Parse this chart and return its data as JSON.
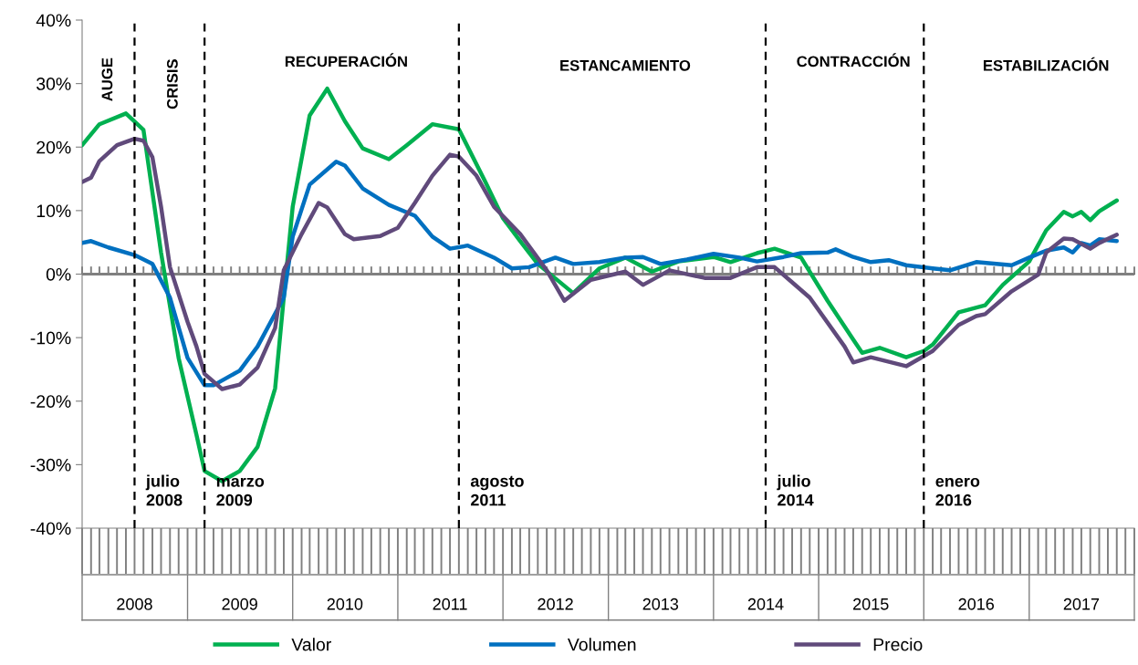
{
  "chart_data": {
    "type": "line",
    "series": [
      {
        "name": "Valor",
        "color": "#00b050",
        "x": [
          "2008-01",
          "2008-03",
          "2008-06",
          "2008-08",
          "2008-10",
          "2008-12",
          "2009-02",
          "2009-03",
          "2009-05",
          "2009-07",
          "2009-09",
          "2009-11",
          "2009-12",
          "2010-01",
          "2010-03",
          "2010-05",
          "2010-07",
          "2010-09",
          "2010-12",
          "2011-02",
          "2011-05",
          "2011-08",
          "2011-11",
          "2012-01",
          "2012-03",
          "2012-05",
          "2012-09",
          "2012-12",
          "2013-03",
          "2013-06",
          "2013-09",
          "2014-01",
          "2014-03",
          "2014-06",
          "2014-08",
          "2014-11",
          "2015-02",
          "2015-05",
          "2015-06",
          "2015-08",
          "2015-11",
          "2016-01",
          "2016-02",
          "2016-05",
          "2016-08",
          "2016-10",
          "2017-01",
          "2017-03",
          "2017-05",
          "2017-06",
          "2017-07",
          "2017-08",
          "2017-09",
          "2017-11"
        ],
        "values": [
          20.3,
          23.6,
          25.3,
          22.7,
          3.4,
          -13.2,
          -25.3,
          -31.0,
          -32.6,
          -31.0,
          -27.2,
          -18.0,
          -3.7,
          10.6,
          25.0,
          29.2,
          24.1,
          19.8,
          18.1,
          20.3,
          23.6,
          22.8,
          14.5,
          8.8,
          5.2,
          1.6,
          -3.0,
          0.9,
          2.6,
          0.4,
          2.0,
          2.7,
          1.9,
          3.3,
          4.0,
          2.6,
          -4.2,
          -10.3,
          -12.4,
          -11.6,
          -13.1,
          -12.1,
          -11.1,
          -6.0,
          -4.9,
          -1.7,
          2.0,
          6.9,
          9.8,
          9.1,
          9.8,
          8.5,
          9.9,
          11.6
        ]
      },
      {
        "name": "Volumen",
        "color": "#0070c0",
        "x": [
          "2008-01",
          "2008-02",
          "2008-04",
          "2008-07",
          "2008-09",
          "2008-11",
          "2009-01",
          "2009-03",
          "2009-04",
          "2009-07",
          "2009-09",
          "2009-12",
          "2010-01",
          "2010-03",
          "2010-06",
          "2010-07",
          "2010-09",
          "2010-12",
          "2011-03",
          "2011-05",
          "2011-07",
          "2011-09",
          "2011-12",
          "2012-02",
          "2012-04",
          "2012-07",
          "2012-09",
          "2012-12",
          "2013-03",
          "2013-05",
          "2013-07",
          "2013-10",
          "2014-01",
          "2014-04",
          "2014-06",
          "2014-09",
          "2014-11",
          "2015-02",
          "2015-03",
          "2015-05",
          "2015-07",
          "2015-09",
          "2015-11",
          "2016-02",
          "2016-04",
          "2016-07",
          "2016-11",
          "2017-01",
          "2017-03",
          "2017-05",
          "2017-06",
          "2017-07",
          "2017-08",
          "2017-09",
          "2017-11"
        ],
        "values": [
          4.9,
          5.2,
          4.2,
          3.0,
          1.6,
          -3.7,
          -13.2,
          -17.5,
          -17.5,
          -15.2,
          -11.4,
          -3.7,
          5.9,
          14.1,
          17.7,
          17.1,
          13.5,
          10.9,
          9.2,
          5.9,
          4.0,
          4.5,
          2.6,
          0.9,
          1.1,
          2.6,
          1.6,
          1.9,
          2.6,
          2.7,
          1.6,
          2.3,
          3.2,
          2.6,
          2.0,
          2.7,
          3.3,
          3.4,
          3.9,
          2.7,
          1.9,
          2.2,
          1.4,
          0.9,
          0.6,
          1.9,
          1.4,
          2.6,
          3.7,
          4.2,
          3.4,
          4.9,
          4.5,
          5.5,
          5.2
        ]
      },
      {
        "name": "Precio",
        "color": "#604a7b",
        "x": [
          "2008-01",
          "2008-02",
          "2008-03",
          "2008-05",
          "2008-07",
          "2008-08",
          "2008-09",
          "2008-10",
          "2008-11",
          "2009-01",
          "2009-02",
          "2009-03",
          "2009-05",
          "2009-07",
          "2009-09",
          "2009-11",
          "2009-12",
          "2010-02",
          "2010-04",
          "2010-05",
          "2010-07",
          "2010-08",
          "2010-11",
          "2011-01",
          "2011-03",
          "2011-05",
          "2011-07",
          "2011-08",
          "2011-10",
          "2011-12",
          "2012-03",
          "2012-06",
          "2012-08",
          "2012-11",
          "2013-03",
          "2013-05",
          "2013-08",
          "2013-12",
          "2014-03",
          "2014-06",
          "2014-08",
          "2014-10",
          "2014-12",
          "2015-04",
          "2015-05",
          "2015-07",
          "2015-11",
          "2016-02",
          "2016-05",
          "2016-07",
          "2016-08",
          "2016-11",
          "2017-02",
          "2017-03",
          "2017-05",
          "2017-06",
          "2017-08",
          "2017-09",
          "2017-11"
        ],
        "values": [
          14.5,
          15.2,
          17.8,
          20.3,
          21.3,
          21.0,
          18.4,
          10.6,
          1.1,
          -7.5,
          -11.4,
          -15.7,
          -18.1,
          -17.4,
          -14.7,
          -8.5,
          0.6,
          6.3,
          11.2,
          10.5,
          6.3,
          5.5,
          6.0,
          7.3,
          11.2,
          15.5,
          18.8,
          18.5,
          15.5,
          10.6,
          6.3,
          0.6,
          -4.2,
          -0.9,
          0.4,
          -1.7,
          0.6,
          -0.6,
          -0.6,
          1.1,
          1.1,
          -1.3,
          -3.7,
          -11.4,
          -13.9,
          -13.1,
          -14.5,
          -12.1,
          -8.0,
          -6.6,
          -6.3,
          -2.7,
          -0.1,
          3.4,
          5.6,
          5.5,
          4.0,
          4.9,
          6.2
        ]
      }
    ],
    "xlim": [
      "2008-01",
      "2018-01"
    ],
    "xticks": [
      {
        "value": "2008-01",
        "label": null
      },
      {
        "value": "2008-02",
        "label": null
      },
      {
        "value": "2008-03",
        "label": null
      },
      {
        "value": "2008-04",
        "label": null
      },
      {
        "value": "2008-05",
        "label": null
      },
      {
        "value": "2008-06",
        "label": null
      },
      {
        "value": "2008-07",
        "label": "2008"
      },
      {
        "value": "2008-08",
        "label": null
      },
      {
        "value": "2008-09",
        "label": null
      },
      {
        "value": "2008-10",
        "label": null
      },
      {
        "value": "2008-11",
        "label": null
      },
      {
        "value": "2008-12",
        "label": null
      },
      {
        "value": "2009-01",
        "label": null
      },
      {
        "value": "2009-02",
        "label": null
      },
      {
        "value": "2009-03",
        "label": null
      },
      {
        "value": "2009-04",
        "label": null
      },
      {
        "value": "2009-05",
        "label": null
      },
      {
        "value": "2009-06",
        "label": null
      },
      {
        "value": "2009-07",
        "label": "2009"
      },
      {
        "value": "2009-08",
        "label": null
      },
      {
        "value": "2009-09",
        "label": null
      },
      {
        "value": "2009-10",
        "label": null
      },
      {
        "value": "2009-11",
        "label": null
      },
      {
        "value": "2009-12",
        "label": null
      },
      {
        "value": "2010-01",
        "label": null
      },
      {
        "value": "2010-02",
        "label": null
      },
      {
        "value": "2010-03",
        "label": null
      },
      {
        "value": "2010-04",
        "label": null
      },
      {
        "value": "2010-05",
        "label": null
      },
      {
        "value": "2010-06",
        "label": null
      },
      {
        "value": "2010-07",
        "label": "2010"
      },
      {
        "value": "2010-08",
        "label": null
      },
      {
        "value": "2010-09",
        "label": null
      },
      {
        "value": "2010-10",
        "label": null
      },
      {
        "value": "2010-11",
        "label": null
      },
      {
        "value": "2010-12",
        "label": null
      },
      {
        "value": "2011-01",
        "label": null
      },
      {
        "value": "2011-02",
        "label": null
      },
      {
        "value": "2011-03",
        "label": null
      },
      {
        "value": "2011-04",
        "label": null
      },
      {
        "value": "2011-05",
        "label": null
      },
      {
        "value": "2011-06",
        "label": null
      },
      {
        "value": "2011-07",
        "label": "2011"
      },
      {
        "value": "2011-08",
        "label": null
      },
      {
        "value": "2011-09",
        "label": null
      },
      {
        "value": "2011-10",
        "label": null
      },
      {
        "value": "2011-11",
        "label": null
      },
      {
        "value": "2011-12",
        "label": null
      },
      {
        "value": "2012-01",
        "label": null
      },
      {
        "value": "2012-02",
        "label": null
      },
      {
        "value": "2012-03",
        "label": null
      },
      {
        "value": "2012-04",
        "label": null
      },
      {
        "value": "2012-05",
        "label": null
      },
      {
        "value": "2012-06",
        "label": null
      },
      {
        "value": "2012-07",
        "label": "2012"
      },
      {
        "value": "2012-08",
        "label": null
      },
      {
        "value": "2012-09",
        "label": null
      },
      {
        "value": "2012-10",
        "label": null
      },
      {
        "value": "2012-11",
        "label": null
      },
      {
        "value": "2012-12",
        "label": null
      },
      {
        "value": "2013-01",
        "label": null
      },
      {
        "value": "2013-02",
        "label": null
      },
      {
        "value": "2013-03",
        "label": null
      },
      {
        "value": "2013-04",
        "label": null
      },
      {
        "value": "2013-05",
        "label": null
      },
      {
        "value": "2013-06",
        "label": null
      },
      {
        "value": "2013-07",
        "label": "2013"
      },
      {
        "value": "2013-08",
        "label": null
      },
      {
        "value": "2013-09",
        "label": null
      },
      {
        "value": "2013-10",
        "label": null
      },
      {
        "value": "2013-11",
        "label": null
      },
      {
        "value": "2013-12",
        "label": null
      },
      {
        "value": "2014-01",
        "label": null
      },
      {
        "value": "2014-02",
        "label": null
      },
      {
        "value": "2014-03",
        "label": null
      },
      {
        "value": "2014-04",
        "label": null
      },
      {
        "value": "2014-05",
        "label": null
      },
      {
        "value": "2014-06",
        "label": null
      },
      {
        "value": "2014-07",
        "label": "2014"
      },
      {
        "value": "2014-08",
        "label": null
      },
      {
        "value": "2014-09",
        "label": null
      },
      {
        "value": "2014-10",
        "label": null
      },
      {
        "value": "2014-11",
        "label": null
      },
      {
        "value": "2014-12",
        "label": null
      },
      {
        "value": "2015-01",
        "label": null
      },
      {
        "value": "2015-02",
        "label": null
      },
      {
        "value": "2015-03",
        "label": null
      },
      {
        "value": "2015-04",
        "label": null
      },
      {
        "value": "2015-05",
        "label": null
      },
      {
        "value": "2015-06",
        "label": null
      },
      {
        "value": "2015-07",
        "label": "2015"
      },
      {
        "value": "2015-08",
        "label": null
      },
      {
        "value": "2015-09",
        "label": null
      },
      {
        "value": "2015-10",
        "label": null
      },
      {
        "value": "2015-11",
        "label": null
      },
      {
        "value": "2015-12",
        "label": null
      },
      {
        "value": "2016-01",
        "label": null
      },
      {
        "value": "2016-02",
        "label": null
      },
      {
        "value": "2016-03",
        "label": null
      },
      {
        "value": "2016-04",
        "label": null
      },
      {
        "value": "2016-05",
        "label": null
      },
      {
        "value": "2016-06",
        "label": null
      },
      {
        "value": "2016-07",
        "label": "2016"
      },
      {
        "value": "2016-08",
        "label": null
      },
      {
        "value": "2016-09",
        "label": null
      },
      {
        "value": "2016-10",
        "label": null
      },
      {
        "value": "2016-11",
        "label": null
      },
      {
        "value": "2016-12",
        "label": null
      },
      {
        "value": "2017-01",
        "label": null
      },
      {
        "value": "2017-02",
        "label": null
      },
      {
        "value": "2017-03",
        "label": null
      },
      {
        "value": "2017-04",
        "label": null
      },
      {
        "value": "2017-05",
        "label": null
      },
      {
        "value": "2017-06",
        "label": null
      },
      {
        "value": "2017-07",
        "label": "2017"
      },
      {
        "value": "2017-08",
        "label": null
      },
      {
        "value": "2017-09",
        "label": null
      },
      {
        "value": "2017-10",
        "label": null
      },
      {
        "value": "2017-11",
        "label": null
      },
      {
        "value": "2017-12",
        "label": null
      },
      {
        "value": "2018-01",
        "label": null
      }
    ],
    "ylim": [
      -40,
      40
    ],
    "yticks": [
      {
        "value": -40,
        "label": "-40%"
      },
      {
        "value": -30,
        "label": "-30%"
      },
      {
        "value": -20,
        "label": "-20%"
      },
      {
        "value": -10,
        "label": "-10%"
      },
      {
        "value": 0,
        "label": "0%"
      },
      {
        "value": 10,
        "label": "10%"
      },
      {
        "value": 20,
        "label": "20%"
      },
      {
        "value": 30,
        "label": "30%"
      },
      {
        "value": 40,
        "label": "40%"
      }
    ],
    "ref_lines": [
      {
        "axis": "y",
        "value": 0,
        "color": "#808080",
        "line_style": "solid"
      },
      {
        "axis": "x",
        "value": "2008-07",
        "label": "julio\n2008",
        "color": "#000000",
        "line_style": "dashed"
      },
      {
        "axis": "x",
        "value": "2009-03",
        "label": "marzo\n2009",
        "color": "#000000",
        "line_style": "dashed"
      },
      {
        "axis": "x",
        "value": "2011-08",
        "label": "agosto\n2011",
        "color": "#000000",
        "line_style": "dashed"
      },
      {
        "axis": "x",
        "value": "2014-07",
        "label": "julio\n2014",
        "color": "#000000",
        "line_style": "dashed"
      },
      {
        "axis": "x",
        "value": "2016-01",
        "label": "enero\n2016",
        "color": "#000000",
        "line_style": "dashed"
      }
    ],
    "annotations": [
      "AUGE",
      "CRISIS",
      "RECUPERACIÓN",
      "ESTANCAMIENTO",
      "CONTRACCIÓN",
      "ESTABILIZACIÓN"
    ],
    "grid": false,
    "legend": "bottom",
    "marker": "none",
    "line_style": "solid"
  }
}
